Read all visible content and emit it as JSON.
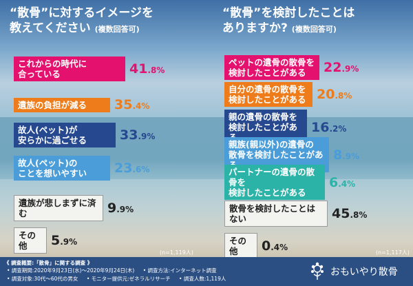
{
  "left_panel": {
    "title": "“散骨”に対するイメージを\n教えてください",
    "subtitle": "(複数回答可)",
    "n_note": "(n=1,119人)"
  },
  "right_panel": {
    "title": "“散骨”を検討したことは\nありますか?",
    "subtitle": "(複数回答可)",
    "n_note": "(n=1,117人)"
  },
  "chart_data": [
    {
      "type": "bar",
      "title": "“散骨”に対するイメージを教えてください(複数回答可)",
      "categories": [
        "これからの時代に\n合っている",
        "遺族の負担が減る",
        "故人(ペット)が\n安らかに過ごせる",
        "故人(ペット)の\nことを想いやすい",
        "遺族が悲しまずに済む",
        "その他"
      ],
      "values": [
        41.8,
        35.4,
        33.9,
        23.6,
        9.9,
        5.9
      ],
      "value_text": [
        [
          "41",
          ".8%"
        ],
        [
          "35",
          ".4%"
        ],
        [
          "33",
          ".9%"
        ],
        [
          "23",
          ".6%"
        ],
        [
          "9",
          ".9%"
        ],
        [
          "5",
          ".9%"
        ]
      ],
      "colors": [
        "#e4116e",
        "#ee7c1a",
        "#25488f",
        "#4a9dd8",
        "#f3f3f0",
        "#f3f3f0"
      ],
      "value_colors": [
        "#e4116e",
        "#ee7c1a",
        "#25488f",
        "#4a9dd8",
        "#222222",
        "#222222"
      ],
      "unit": "%"
    },
    {
      "type": "bar",
      "title": "“散骨”を検討したことはありますか?(複数回答可)",
      "categories": [
        "ペットの遺骨の散骨を\n検討したことがある",
        "自分の遺骨の散骨を\n検討したことがある",
        "親の遺骨の散骨を\n検討したことがある",
        "親族(親以外)の遺骨の\n散骨を検討したことがある",
        "パートナーの遺骨の散骨を\n検討したことがある",
        "散骨を検討したことはない",
        "その他"
      ],
      "values": [
        22.9,
        20.8,
        16.2,
        8.9,
        6.4,
        45.8,
        0.4
      ],
      "value_text": [
        [
          "22",
          ".9%"
        ],
        [
          "20",
          ".8%"
        ],
        [
          "16",
          ".2%"
        ],
        [
          "8",
          ".9%"
        ],
        [
          "6",
          ".4%"
        ],
        [
          "45",
          ".8%"
        ],
        [
          "0",
          ".4%"
        ]
      ],
      "colors": [
        "#e4116e",
        "#ee7c1a",
        "#25488f",
        "#4a9dd8",
        "#2bb3a8",
        "#f3f3f0",
        "#f3f3f0"
      ],
      "value_colors": [
        "#e4116e",
        "#ee7c1a",
        "#25488f",
        "#4a9dd8",
        "#2bb3a8",
        "#222222",
        "#222222"
      ],
      "unit": "%"
    }
  ],
  "footer": {
    "heading": "《 調査概要:「散骨」に関する調査 》",
    "line1": [
      "• 調査期間:2020年9月23日(水)～2020年9月24日(木)",
      "• 調査方法:インターネット調査"
    ],
    "line2": [
      "• 調査対象:30代～60代の男女",
      "• モニター提供元:ゼネラルリサーチ",
      "• 調査人数:1,119人"
    ],
    "brand": "おもいやり散骨"
  }
}
